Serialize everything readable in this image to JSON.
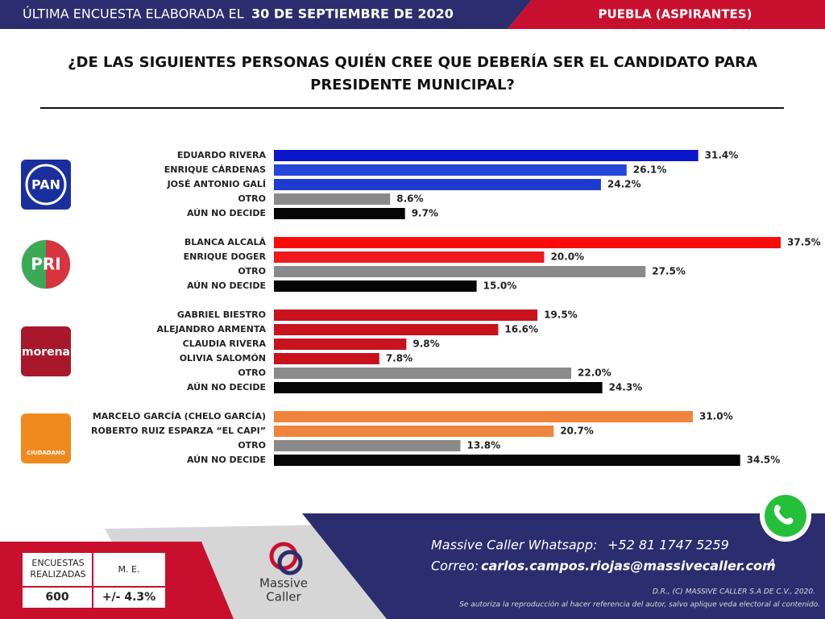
{
  "header": {
    "prefix": "ÚLTIMA ENCUESTA ELABORADA EL",
    "date": "30 DE SEPTIEMBRE DE 2020",
    "region": "PUEBLA (ASPIRANTES)"
  },
  "chart_data": {
    "type": "bar",
    "title": [
      "¿DE LAS SIGUIENTES PERSONAS QUIÉN CREE QUE DEBERÍA SER EL CANDIDATO PARA",
      "PRESIDENTE MUNICIPAL?"
    ],
    "xlim": [
      0,
      37.5
    ],
    "groups": [
      {
        "logo": "PAN",
        "logo_color": "#1a2f9e",
        "categories": [
          "EDUARDO RIVERA",
          "ENRIQUE CÁRDENAS",
          "JOSÉ ANTONIO GALÍ",
          "OTRO",
          "AÚN NO DECIDE"
        ],
        "values": [
          31.4,
          26.1,
          24.2,
          8.6,
          9.7
        ],
        "value_labels": [
          "31.4%",
          "26.1%",
          "24.2%",
          "8.6%",
          "9.7%"
        ],
        "colors": [
          "#0a16c8",
          "#2546d8",
          "#1e3cd2",
          "#8a8a8a",
          "#050505"
        ]
      },
      {
        "logo": "PRI",
        "logo_color": "#d0101e",
        "categories": [
          "BLANCA ALCALÁ",
          "ENRIQUE DOGER",
          "OTRO",
          "AÚN NO DECIDE"
        ],
        "values": [
          37.5,
          20.0,
          27.5,
          15.0
        ],
        "value_labels": [
          "37.5%",
          "20.0%",
          "27.5%",
          "15.0%"
        ],
        "colors": [
          "#ff0a0a",
          "#ee1a1e",
          "#8a8a8a",
          "#050505"
        ]
      },
      {
        "logo": "morena",
        "logo_color": "#a8182a",
        "categories": [
          "GABRIEL BIESTRO",
          "ALEJANDRO ARMENTA",
          "CLAUDIA RIVERA",
          "OLIVIA SALOMÓN",
          "OTRO",
          "AÚN NO DECIDE"
        ],
        "values": [
          19.5,
          16.6,
          9.8,
          7.8,
          22.0,
          24.3
        ],
        "value_labels": [
          "19.5%",
          "16.6%",
          "9.8%",
          "7.8%",
          "22.0%",
          "24.3%"
        ],
        "colors": [
          "#c8121c",
          "#c8121c",
          "#c8121c",
          "#c8121c",
          "#8a8a8a",
          "#050505"
        ]
      },
      {
        "logo": "CIUDADANO",
        "logo_color": "#f08a1e",
        "categories": [
          "MARCELO GARCÍA (CHELO GARCÍA)",
          "ROBERTO RUIZ ESPARZA “EL CAPI”",
          "OTRO",
          "AÚN NO DECIDE"
        ],
        "values": [
          31.0,
          20.7,
          13.8,
          34.5
        ],
        "value_labels": [
          "31.0%",
          "20.7%",
          "13.8%",
          "34.5%"
        ],
        "colors": [
          "#f0843c",
          "#f0843c",
          "#8a8a8a",
          "#050505"
        ]
      }
    ]
  },
  "footer": {
    "table": {
      "headers": [
        "ENCUESTAS REALIZADAS",
        "M. E."
      ],
      "values": [
        "600",
        "+/- 4.3%"
      ]
    },
    "brand": [
      "Massive",
      "Caller"
    ],
    "whatsapp_label": "Massive Caller Whatsapp:",
    "whatsapp": "+52 81 1747 5259",
    "email_label": "Correo:",
    "email": "carlos.campos.riojas@massivecaller.com",
    "page": "4",
    "copyright": "D.R., (C) MASSIVE CALLER S.A DE C.V., 2020.",
    "notice": "Se autoriza la reproducción al hacer referencia del autor, salvo aplique veda electoral al contenido."
  }
}
